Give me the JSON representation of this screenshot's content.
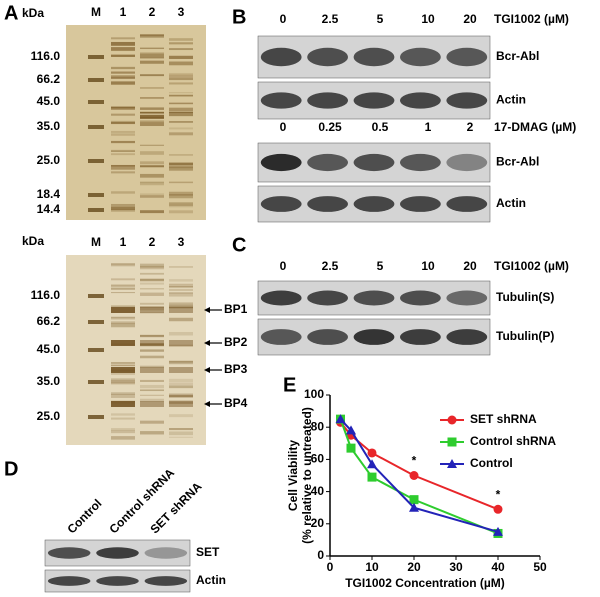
{
  "panels": {
    "A": {
      "label": "A",
      "top_gel": {
        "kda": "kDa",
        "lanes": [
          "M",
          "1",
          "2",
          "3"
        ],
        "markers": [
          "116.0",
          "66.2",
          "45.0",
          "35.0",
          "25.0",
          "18.4",
          "14.4"
        ]
      },
      "bottom_gel": {
        "kda": "kDa",
        "lanes": [
          "M",
          "1",
          "2",
          "3"
        ],
        "markers": [
          "116.0",
          "66.2",
          "45.0",
          "35.0",
          "25.0"
        ],
        "bands": [
          "BP1",
          "BP2",
          "BP3",
          "BP4"
        ]
      }
    },
    "B": {
      "label": "B",
      "blot1": {
        "lanes": [
          "0",
          "2.5",
          "5",
          "10",
          "20"
        ],
        "treatment": "TGI1002 (µM)",
        "rows": [
          "Bcr-Abl",
          "Actin"
        ]
      },
      "blot2": {
        "lanes": [
          "0",
          "0.25",
          "0.5",
          "1",
          "2"
        ],
        "treatment": "17-DMAG (µM)",
        "rows": [
          "Bcr-Abl",
          "Actin"
        ]
      }
    },
    "C": {
      "label": "C",
      "lanes": [
        "0",
        "2.5",
        "5",
        "10",
        "20"
      ],
      "treatment": "TGI1002 (µM)",
      "rows": [
        "Tubulin(S)",
        "Tubulin(P)"
      ]
    },
    "D": {
      "label": "D",
      "lanes": [
        "Control",
        "Control shRNA",
        "SET shRNA"
      ],
      "rows": [
        "SET",
        "Actin"
      ]
    },
    "E": {
      "label": "E"
    }
  },
  "chart_data": {
    "type": "line",
    "ylabel": [
      "Cell Viability",
      "(% relative to untreated)"
    ],
    "xlabel": "TGI1002 Concentration (µM)",
    "x": [
      2.5,
      5,
      10,
      20,
      40
    ],
    "series": [
      {
        "name": "SET shRNA",
        "color": "#e8262a",
        "marker": "circle",
        "values": [
          83,
          75,
          64,
          50,
          29
        ]
      },
      {
        "name": "Control shRNA",
        "color": "#2ecc2e",
        "marker": "square",
        "values": [
          85,
          67,
          49,
          35,
          14
        ]
      },
      {
        "name": "Control",
        "color": "#2323b8",
        "marker": "triangle",
        "values": [
          85,
          78,
          57,
          30,
          15
        ]
      }
    ],
    "annotations": [
      {
        "text": "*",
        "x": 20
      },
      {
        "text": "*",
        "x": 40
      }
    ],
    "xlim": [
      0,
      50
    ],
    "xticks": [
      0,
      10,
      20,
      30,
      40,
      50
    ],
    "ylim": [
      0,
      100
    ],
    "yticks": [
      0,
      20,
      40,
      60,
      80,
      100
    ],
    "legend": "upper-right"
  }
}
